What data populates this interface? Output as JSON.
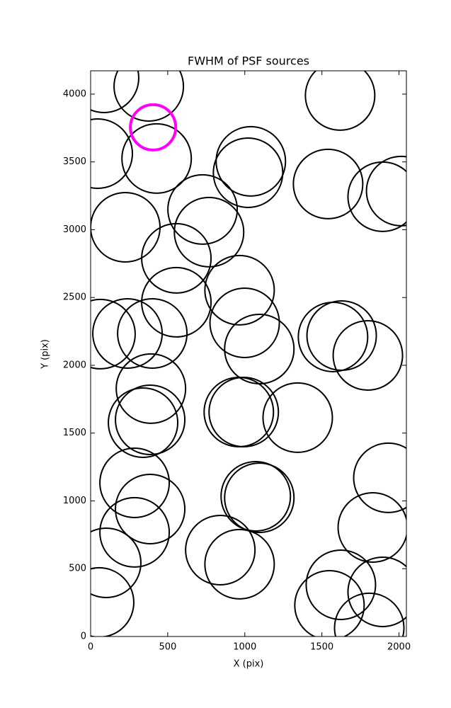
{
  "chart_data": {
    "type": "scatter",
    "title": "FWHM of PSF sources",
    "xlabel": "X (pix)",
    "ylabel": "Y (pix)",
    "x": [
      87,
      377,
      46,
      428,
      1618,
      1039,
      1021,
      1540,
      1894,
      2014,
      726,
      768,
      225,
      556,
      556,
      966,
      999,
      1094,
      64,
      239,
      400,
      1572,
      1628,
      1798,
      391,
      340,
      386,
      961,
      993,
      1343,
      285,
      386,
      285,
      1071,
      1094,
      1931,
      1830,
      101,
      55,
      841,
      966,
      1623,
      1549,
      1894,
      1807
    ],
    "y": [
      4120,
      4057,
      3561,
      3525,
      3990,
      3504,
      3420,
      3337,
      3243,
      3285,
      3149,
      2982,
      3018,
      2789,
      2465,
      2554,
      2313,
      2120,
      2230,
      2235,
      2235,
      2209,
      2219,
      2073,
      1828,
      1577,
      1598,
      1655,
      1655,
      1614,
      1133,
      940,
      768,
      1034,
      1023,
      1170,
      804,
      543,
      251,
      637,
      533,
      381,
      230,
      329,
      63
    ],
    "color": "#000000",
    "highlight": {
      "x": [
        405
      ],
      "y": [
        3755
      ],
      "color": "#ff00ff"
    },
    "xlim": [
      0,
      2048
    ],
    "ylim": [
      0,
      4172
    ],
    "xticks": [
      0,
      500,
      1000,
      1500,
      2000
    ],
    "yticks": [
      0,
      500,
      1000,
      1500,
      2000,
      2500,
      3000,
      3500,
      4000
    ]
  }
}
